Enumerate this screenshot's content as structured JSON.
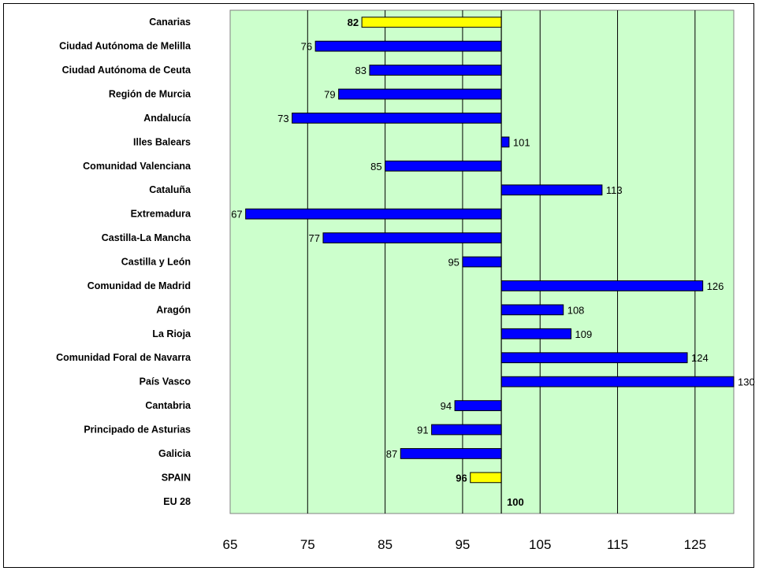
{
  "chart_data": {
    "type": "bar",
    "orientation": "horizontal",
    "baseline": 100,
    "xlim": [
      65,
      130
    ],
    "xticks": [
      65,
      75,
      85,
      95,
      105,
      115,
      125
    ],
    "grid": true,
    "categories": [
      "Canarias",
      "Ciudad Autónoma de Melilla",
      "Ciudad Autónoma de Ceuta",
      "Región de Murcia",
      "Andalucía",
      "Illes Balears",
      "Comunidad Valenciana",
      "Cataluña",
      "Extremadura",
      "Castilla-La Mancha",
      "Castilla y León",
      "Comunidad de Madrid",
      "Aragón",
      "La Rioja",
      "Comunidad Foral de Navarra",
      "País Vasco",
      "Cantabria",
      "Principado de Asturias",
      "Galicia",
      "SPAIN",
      "EU 28"
    ],
    "values": [
      82,
      76,
      83,
      79,
      73,
      101,
      85,
      113,
      67,
      77,
      95,
      126,
      108,
      109,
      124,
      130,
      94,
      91,
      87,
      96,
      100
    ],
    "highlighted": [
      "Canarias",
      "SPAIN",
      "EU 28"
    ],
    "colors": {
      "bar": "#0000ff",
      "highlight_bar": "#ffff00",
      "plot_background": "#ccffcc",
      "bar_border": "#000000"
    }
  }
}
